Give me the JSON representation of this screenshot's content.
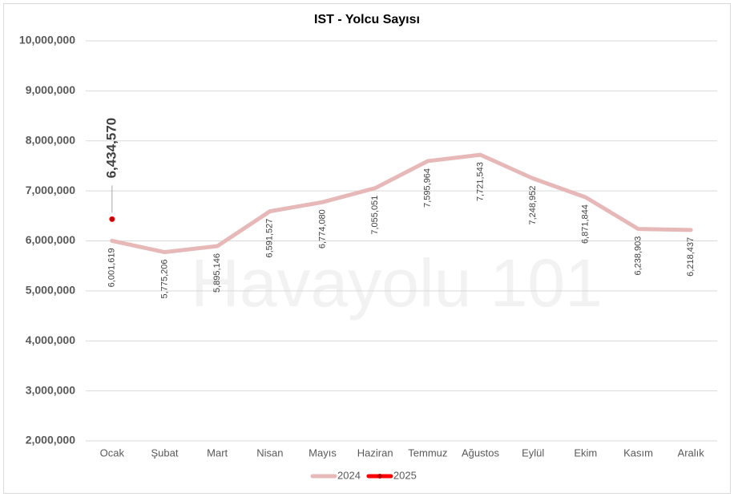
{
  "chart_data": {
    "type": "line",
    "title": "IST - Yolcu Sayısı",
    "watermark": "Havayolu 101",
    "categories": [
      "Ocak",
      "Şubat",
      "Mart",
      "Nisan",
      "Mayıs",
      "Haziran",
      "Temmuz",
      "Ağustos",
      "Eylül",
      "Ekim",
      "Kasım",
      "Aralık"
    ],
    "series": [
      {
        "name": "2024",
        "color": "#e6b9b8",
        "values": [
          6001619,
          5775206,
          5895146,
          6591527,
          6774080,
          7055051,
          7595964,
          7721543,
          7248952,
          6871844,
          6238903,
          6218437
        ],
        "value_labels": [
          "6,001,619",
          "5,775,206",
          "5,895,146",
          "6,591,527",
          "6,774,080",
          "7,055,051",
          "7,595,964",
          "7,721,543",
          "7,248,952",
          "6,871,844",
          "6,238,903",
          "6,218,437"
        ]
      },
      {
        "name": "2025",
        "color": "#ff0000",
        "marker_color": "#c00000",
        "values": [
          6434570,
          null,
          null,
          null,
          null,
          null,
          null,
          null,
          null,
          null,
          null,
          null
        ],
        "value_labels": [
          "6,434,570",
          null,
          null,
          null,
          null,
          null,
          null,
          null,
          null,
          null,
          null,
          null
        ]
      }
    ],
    "ylim": [
      2000000,
      10000000
    ],
    "yticks": [
      {
        "value": 2000000,
        "label": "2,000,000"
      },
      {
        "value": 3000000,
        "label": "3,000,000"
      },
      {
        "value": 4000000,
        "label": "4,000,000"
      },
      {
        "value": 5000000,
        "label": "5,000,000"
      },
      {
        "value": 6000000,
        "label": "6,000,000"
      },
      {
        "value": 7000000,
        "label": "7,000,000"
      },
      {
        "value": 8000000,
        "label": "8,000,000"
      },
      {
        "value": 9000000,
        "label": "9,000,000"
      },
      {
        "value": 10000000,
        "label": "10,000,000"
      }
    ],
    "grid": true
  }
}
